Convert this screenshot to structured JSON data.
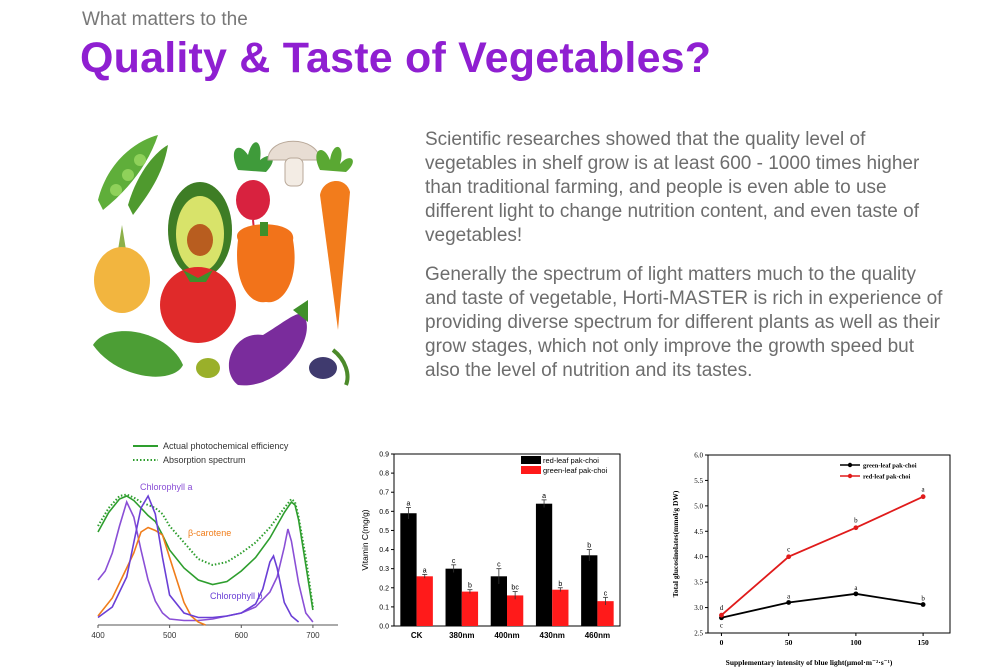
{
  "header": {
    "kicker": "What matters to the",
    "title": "Quality & Taste of Vegetables?"
  },
  "body": {
    "paragraph_1": "Scientific researches showed that the quality level of vegetables in shelf grow is at least 600 - 1000 times higher than traditional farming, and people is even able to use different light to change nutrition content, and even taste of vegetables!",
    "paragraph_2": "Generally the spectrum of light matters much to the quality and taste of vegetable, Horti-MASTER is rich in experience of providing diverse spectrum for different plants as well as their grow stages, which not only improve the growth speed but also the level of nutrition and its tastes."
  },
  "illustration": {
    "icons": [
      "peas-icon",
      "avocado-icon",
      "radish-icon",
      "mushroom-icon",
      "carrot-icon",
      "onion-icon",
      "tomato-icon",
      "bell-pepper-icon",
      "cucumber-icon",
      "eggplant-icon",
      "olive-icon"
    ]
  },
  "chart_data": [
    {
      "type": "line",
      "legend": [
        "Actual photochemical efficiency",
        "Absorption spectrum"
      ],
      "annotations": [
        "Chlorophyll a",
        "β-carotene",
        "Chlorophyll b"
      ],
      "x_ticks": [
        "400",
        "500",
        "600",
        "700"
      ],
      "xlim": [
        400,
        735
      ],
      "ylim": [
        0,
        1
      ],
      "series": [
        {
          "name": "Actual photochemical efficiency",
          "color": "#2e9e2e",
          "style": "solid",
          "x": [
            400,
            415,
            430,
            440,
            450,
            460,
            470,
            480,
            490,
            500,
            520,
            540,
            560,
            580,
            600,
            620,
            640,
            660,
            670,
            675,
            680,
            690,
            700
          ],
          "y": [
            0.62,
            0.75,
            0.84,
            0.86,
            0.83,
            0.78,
            0.73,
            0.69,
            0.6,
            0.5,
            0.38,
            0.3,
            0.27,
            0.29,
            0.36,
            0.45,
            0.58,
            0.75,
            0.82,
            0.8,
            0.7,
            0.4,
            0.1
          ]
        },
        {
          "name": "Absorption spectrum",
          "color": "#2e9e2e",
          "style": "dotted",
          "x": [
            400,
            415,
            430,
            440,
            450,
            460,
            470,
            480,
            490,
            500,
            520,
            540,
            560,
            580,
            600,
            620,
            640,
            660,
            670,
            675,
            680,
            690,
            700
          ],
          "y": [
            0.66,
            0.78,
            0.86,
            0.87,
            0.85,
            0.82,
            0.8,
            0.78,
            0.74,
            0.66,
            0.55,
            0.44,
            0.4,
            0.42,
            0.48,
            0.55,
            0.65,
            0.78,
            0.84,
            0.82,
            0.72,
            0.45,
            0.12
          ]
        },
        {
          "name": "Chlorophyll a",
          "color": "#8a4fd6",
          "style": "solid",
          "x": [
            400,
            410,
            420,
            430,
            440,
            450,
            460,
            470,
            480,
            490,
            500,
            520,
            540,
            560,
            580,
            600,
            620,
            640,
            650,
            660,
            665,
            670,
            680,
            690,
            700
          ],
          "y": [
            0.3,
            0.36,
            0.48,
            0.66,
            0.82,
            0.72,
            0.5,
            0.3,
            0.16,
            0.08,
            0.04,
            0.03,
            0.03,
            0.04,
            0.06,
            0.08,
            0.12,
            0.22,
            0.32,
            0.52,
            0.64,
            0.56,
            0.28,
            0.08,
            0.02
          ]
        },
        {
          "name": "β-carotene",
          "color": "#f07d1a",
          "style": "solid",
          "x": [
            400,
            420,
            440,
            450,
            460,
            470,
            480,
            490,
            500,
            510,
            520,
            530,
            540,
            550
          ],
          "y": [
            0.06,
            0.18,
            0.38,
            0.48,
            0.62,
            0.65,
            0.63,
            0.6,
            0.45,
            0.3,
            0.15,
            0.06,
            0.02,
            0.0
          ]
        },
        {
          "name": "Chlorophyll b",
          "color": "#6a3fd6",
          "style": "solid",
          "x": [
            400,
            420,
            440,
            450,
            460,
            470,
            480,
            490,
            500,
            520,
            540,
            560,
            580,
            600,
            620,
            630,
            640,
            645,
            650,
            660,
            670,
            680
          ],
          "y": [
            0.05,
            0.12,
            0.32,
            0.55,
            0.78,
            0.86,
            0.74,
            0.45,
            0.2,
            0.08,
            0.05,
            0.05,
            0.06,
            0.08,
            0.14,
            0.24,
            0.42,
            0.46,
            0.38,
            0.15,
            0.06,
            0.02
          ]
        }
      ]
    },
    {
      "type": "bar",
      "ylabel": "Vitamin C(mg/g)",
      "ylim": [
        0,
        0.9
      ],
      "y_ticks": [
        "0.0",
        "0.1",
        "0.2",
        "0.3",
        "0.4",
        "0.5",
        "0.6",
        "0.7",
        "0.8",
        "0.9"
      ],
      "categories": [
        "CK",
        "380nm",
        "400nm",
        "430nm",
        "460nm"
      ],
      "legend_position": "top-right",
      "series": [
        {
          "name": "red-leaf pak-choi",
          "color": "#000000",
          "values": [
            0.59,
            0.3,
            0.26,
            0.64,
            0.37
          ],
          "errors": [
            0.03,
            0.02,
            0.04,
            0.02,
            0.03
          ],
          "letters": [
            "a",
            "c",
            "c",
            "a",
            "b"
          ]
        },
        {
          "name": "green-leaf pak-choi",
          "color": "#ff1a1a",
          "values": [
            0.26,
            0.18,
            0.16,
            0.19,
            0.13
          ],
          "errors": [
            0.01,
            0.01,
            0.02,
            0.01,
            0.02
          ],
          "letters": [
            "a",
            "b",
            "bc",
            "b",
            "c"
          ]
        }
      ]
    },
    {
      "type": "line",
      "xlabel": "Supplementary intensity of blue light(μmol·m⁻²·s⁻¹)",
      "ylabel": "Total glucosinolates(mmol/g DW)",
      "x_ticks": [
        "0",
        "50",
        "100",
        "150"
      ],
      "y_ticks": [
        "2.5",
        "3.0",
        "3.5",
        "4.0",
        "4.5",
        "5.0",
        "5.5",
        "6.0"
      ],
      "xlim": [
        -10,
        170
      ],
      "ylim": [
        2.5,
        6.0
      ],
      "legend_position": "top-right",
      "series": [
        {
          "name": "green-leaf pak-choi",
          "color": "#000000",
          "x": [
            0,
            50,
            100,
            150
          ],
          "y": [
            2.8,
            3.1,
            3.27,
            3.06
          ],
          "letters": [
            "c",
            "a",
            "a",
            "b"
          ]
        },
        {
          "name": "red-leaf pak-choi",
          "color": "#e01b1b",
          "x": [
            0,
            50,
            100,
            150
          ],
          "y": [
            2.85,
            4.0,
            4.57,
            5.18
          ],
          "letters": [
            "d",
            "c",
            "b",
            "a"
          ]
        }
      ]
    }
  ]
}
